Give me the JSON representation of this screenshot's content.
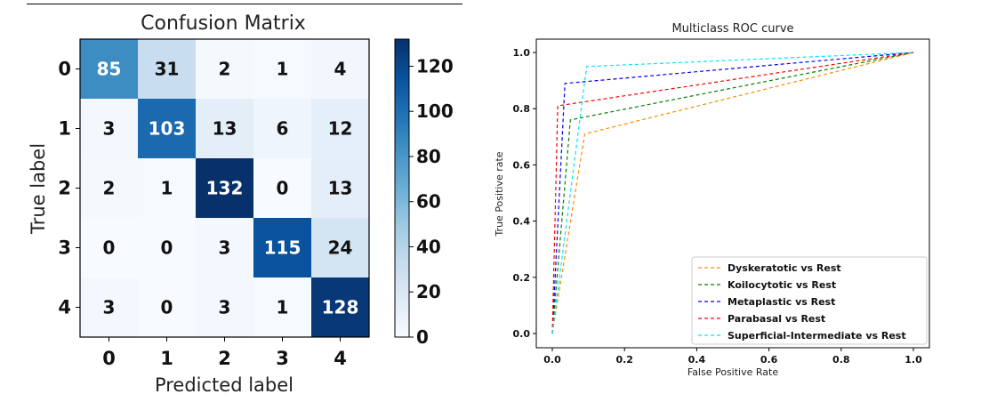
{
  "chart_data": [
    {
      "type": "heatmap",
      "title": "Confusion Matrix",
      "xlabel": "Predicted label",
      "ylabel": "True label",
      "x_ticks": [
        "0",
        "1",
        "2",
        "3",
        "4"
      ],
      "y_ticks": [
        "0",
        "1",
        "2",
        "3",
        "4"
      ],
      "matrix": [
        [
          85,
          31,
          2,
          1,
          4
        ],
        [
          3,
          103,
          13,
          6,
          12
        ],
        [
          2,
          1,
          132,
          0,
          13
        ],
        [
          0,
          0,
          3,
          115,
          24
        ],
        [
          3,
          0,
          3,
          1,
          128
        ]
      ],
      "colormap": "Blues",
      "vmin": 0,
      "vmax": 132,
      "colorbar_ticks": [
        "0",
        "20",
        "40",
        "60",
        "80",
        "100",
        "120"
      ],
      "colorbar_tick_values": [
        0,
        20,
        40,
        60,
        80,
        100,
        120
      ]
    },
    {
      "type": "line",
      "title": "Multiclass ROC curve",
      "xlabel": "False Positive Rate",
      "ylabel": "True Positive rate",
      "xlim": [
        0,
        1
      ],
      "ylim": [
        0,
        1
      ],
      "x_ticks": [
        "0.0",
        "0.2",
        "0.4",
        "0.6",
        "0.8",
        "1.0"
      ],
      "x_tick_values": [
        0,
        0.2,
        0.4,
        0.6,
        0.8,
        1.0
      ],
      "y_ticks": [
        "0.0",
        "0.2",
        "0.4",
        "0.6",
        "0.8",
        "1.0"
      ],
      "y_tick_values": [
        0,
        0.2,
        0.4,
        0.6,
        0.8,
        1.0
      ],
      "grid": false,
      "legend_position": "lower-right",
      "line_style": "dashed",
      "series": [
        {
          "name": "Dyskeratotic vs Rest",
          "color": "#ff8c00",
          "x": [
            0,
            0.09,
            1.0
          ],
          "y": [
            0,
            0.71,
            1.0
          ]
        },
        {
          "name": "Koilocytotic vs Rest",
          "color": "#008000",
          "x": [
            0,
            0.05,
            1.0
          ],
          "y": [
            0,
            0.76,
            1.0
          ]
        },
        {
          "name": "Metaplastic vs Rest",
          "color": "#0000ff",
          "x": [
            0,
            0.035,
            1.0
          ],
          "y": [
            0,
            0.89,
            1.0
          ]
        },
        {
          "name": "Parabasal vs Rest",
          "color": "#ff0000",
          "x": [
            0,
            0.015,
            1.0
          ],
          "y": [
            0,
            0.81,
            1.0
          ]
        },
        {
          "name": "Superficial-Intermediate vs Rest",
          "color": "#00e5ff",
          "x": [
            0,
            0.095,
            1.0
          ],
          "y": [
            0,
            0.95,
            1.0
          ]
        }
      ]
    }
  ]
}
